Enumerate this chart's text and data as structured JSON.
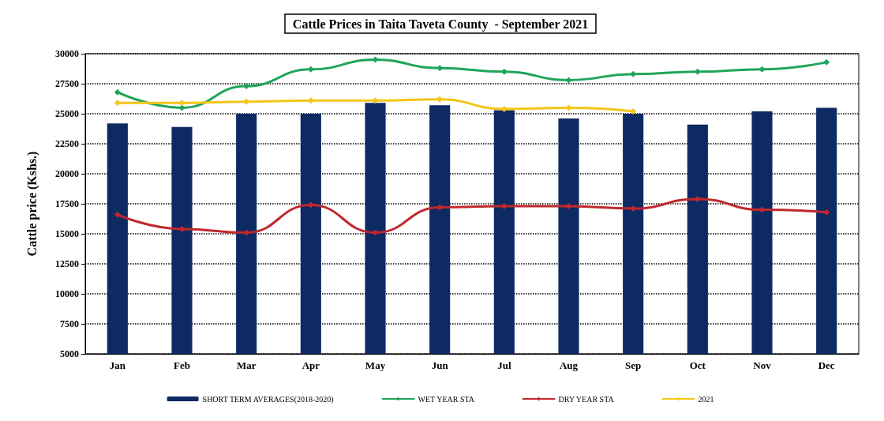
{
  "chart_data": {
    "type": "bar",
    "title": "Cattle Prices in Taita Taveta County  - September 2021",
    "ylabel": "Cattle price (Kshs.)",
    "categories": [
      "Jan",
      "Feb",
      "Mar",
      "Apr",
      "May",
      "Jun",
      "Jul",
      "Aug",
      "Sep",
      "Oct",
      "Nov",
      "Dec"
    ],
    "series": [
      {
        "name": "SHORT TERM AVERAGES(2018-2020)",
        "color": "#0d2a63",
        "values": [
          24200,
          23900,
          25000,
          25000,
          25900,
          25700,
          25300,
          24600,
          25000,
          24100,
          25200,
          25500
        ]
      },
      {
        "name": "WET YEAR STA",
        "type": "line",
        "color": "#1fa55a",
        "values": [
          26800,
          25500,
          27300,
          28700,
          29500,
          28800,
          28500,
          27800,
          28300,
          28500,
          28700,
          29300
        ]
      },
      {
        "name": "DRY YEAR STA",
        "type": "line",
        "color": "#c0282d",
        "values": [
          16600,
          15400,
          15100,
          17400,
          15100,
          17200,
          17300,
          17300,
          17100,
          17900,
          17000,
          16800
        ]
      },
      {
        "name": "2021",
        "type": "line",
        "color": "#f5c518",
        "values": [
          25900,
          25900,
          26000,
          26100,
          26100,
          26200,
          25400,
          25500,
          25200,
          null,
          null,
          null
        ]
      }
    ],
    "ylim": [
      5000,
      30000
    ],
    "yticks": [
      5000,
      7500,
      10000,
      12500,
      15000,
      17500,
      20000,
      22500,
      25000,
      27500,
      30000
    ],
    "grid": "y",
    "legend": "bottom",
    "marker": "diamond",
    "line_style": "solid"
  }
}
